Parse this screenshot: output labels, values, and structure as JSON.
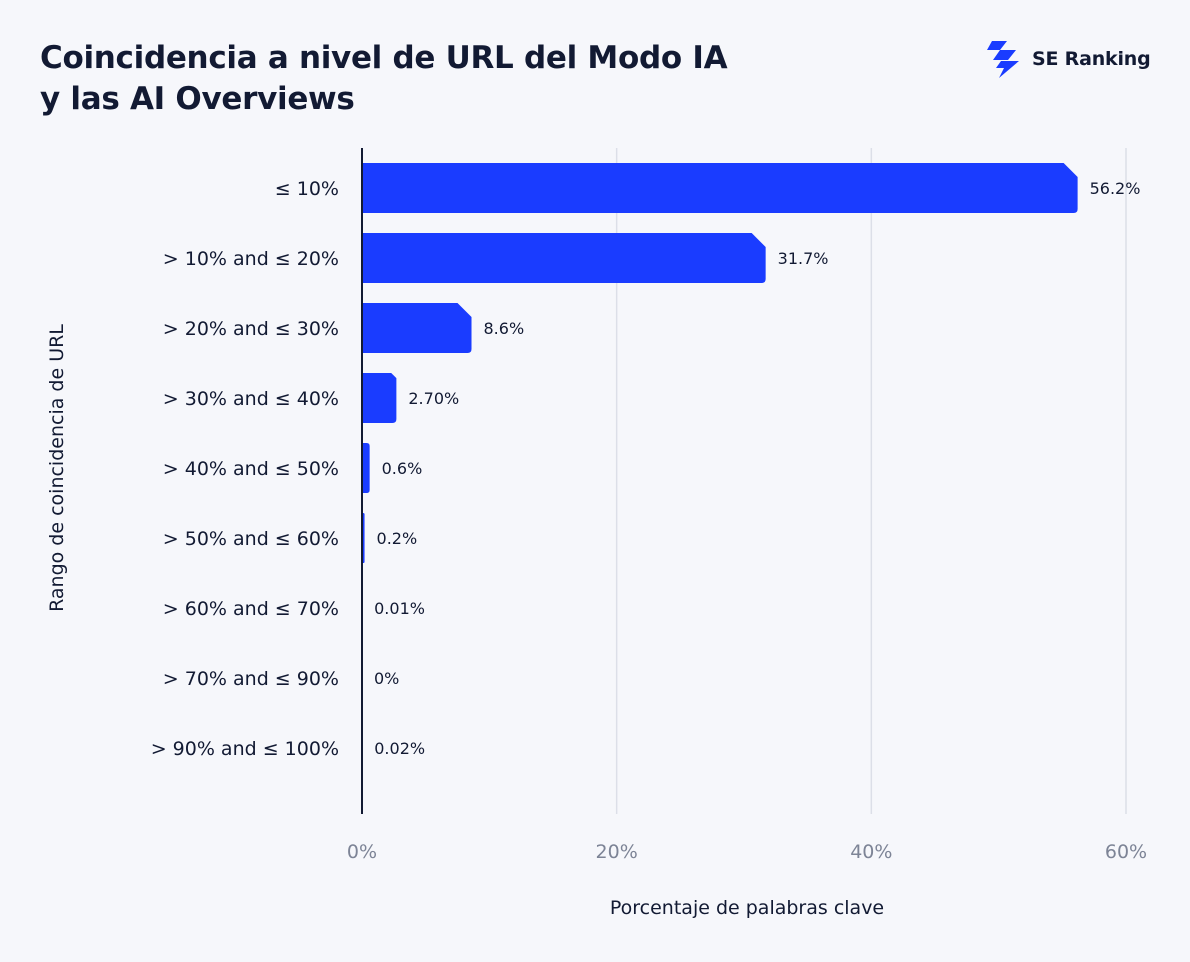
{
  "header": {
    "title_line1": "Coincidencia a nivel de URL del Modo IA",
    "title_line2": "y las AI Overviews",
    "logo_text": "SE Ranking",
    "logo_icon": "se-ranking-bolt-icon"
  },
  "colors": {
    "bar": "#1a3cff",
    "background": "#f6f7fb",
    "grid": "#dcdfe8",
    "axis": "#121a33",
    "tick": "#7d8496",
    "text": "#121a33"
  },
  "chart_data": {
    "type": "bar",
    "orientation": "horizontal",
    "title": "Coincidencia a nivel de URL del Modo IA y las AI Overviews",
    "xlabel": "Porcentaje de palabras clave",
    "ylabel": "Rango de coincidencia de URL",
    "categories": [
      "≤ 10%",
      "> 10% and ≤ 20%",
      "> 20% and ≤ 30%",
      "> 30% and ≤ 40%",
      "> 40% and ≤ 50%",
      "> 50% and ≤ 60%",
      "> 60% and ≤ 70%",
      "> 70% and ≤ 90%",
      "> 90% and ≤ 100%"
    ],
    "values": [
      56.2,
      31.7,
      8.6,
      2.7,
      0.6,
      0.2,
      0.01,
      0,
      0.02
    ],
    "data_labels": [
      "56.2%",
      "31.7%",
      "8.6%",
      "2.70%",
      "0.6%",
      "0.2%",
      "0.01%",
      "0%",
      "0.02%"
    ],
    "xlim": [
      0,
      60
    ],
    "xticks": [
      0,
      20,
      40,
      60
    ],
    "xtick_labels": [
      "0%",
      "20%",
      "40%",
      "60%"
    ],
    "grid": "vertical",
    "legend": "none"
  }
}
